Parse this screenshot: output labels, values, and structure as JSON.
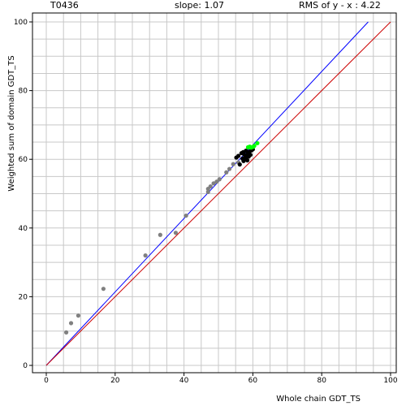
{
  "header": {
    "target_id": "T0436",
    "slope_text": "slope: 1.07",
    "rms_text": "RMS of  y - x : 4.22"
  },
  "chart_data": {
    "type": "scatter",
    "xlabel": "Whole chain GDT_TS",
    "ylabel": "Weighted sum of domain GDT_TS",
    "xlim": [
      0,
      100
    ],
    "ylim": [
      0,
      100
    ],
    "x_ticks": [
      0,
      20,
      40,
      60,
      80,
      100
    ],
    "y_ticks": [
      0,
      20,
      40,
      60,
      80,
      100
    ],
    "grid": true,
    "colors": {
      "fit_line": "#0000ff",
      "identity_line": "#cc0000",
      "grey_points": "#808080",
      "black_points": "#000000",
      "green_points": "#00ff00",
      "grid": "#c8c8c8"
    },
    "lines": [
      {
        "kind": "fit",
        "x": [
          0,
          93.5
        ],
        "y": [
          0,
          100
        ]
      },
      {
        "kind": "identity",
        "x": [
          0,
          100
        ],
        "y": [
          0,
          100
        ]
      }
    ],
    "series": [
      {
        "color": "grey",
        "x": [
          5.8,
          7.2,
          9.3,
          16.6,
          28.8,
          33.1,
          37.6,
          40.6,
          47.0,
          47.0,
          47.7,
          48.6,
          49.5,
          50.3,
          52.3,
          53.2,
          54.3,
          55.8
        ],
        "y": [
          9.6,
          12.3,
          14.5,
          22.3,
          32.0,
          38.0,
          38.6,
          43.6,
          50.5,
          51.4,
          52.1,
          53.0,
          53.5,
          54.2,
          56.2,
          57.2,
          58.6,
          59.1
        ]
      },
      {
        "color": "black",
        "x": [
          55.2,
          55.8,
          56.2,
          56.7,
          57.0,
          57.2,
          57.5,
          57.8,
          58.0,
          58.2,
          58.4,
          58.6,
          58.8,
          59.0,
          59.3,
          59.6,
          60.0,
          57.3,
          58.1
        ],
        "y": [
          60.5,
          61.0,
          58.5,
          61.8,
          60.2,
          62.1,
          61.4,
          60.6,
          62.5,
          61.0,
          59.7,
          61.7,
          60.8,
          62.2,
          61.3,
          62.6,
          62.9,
          59.5,
          60.1
        ]
      },
      {
        "color": "green",
        "x": [
          58.6,
          59.1,
          59.5,
          60.0,
          60.4,
          61.3
        ],
        "y": [
          63.5,
          63.7,
          63.4,
          63.6,
          63.9,
          64.7
        ]
      }
    ]
  }
}
